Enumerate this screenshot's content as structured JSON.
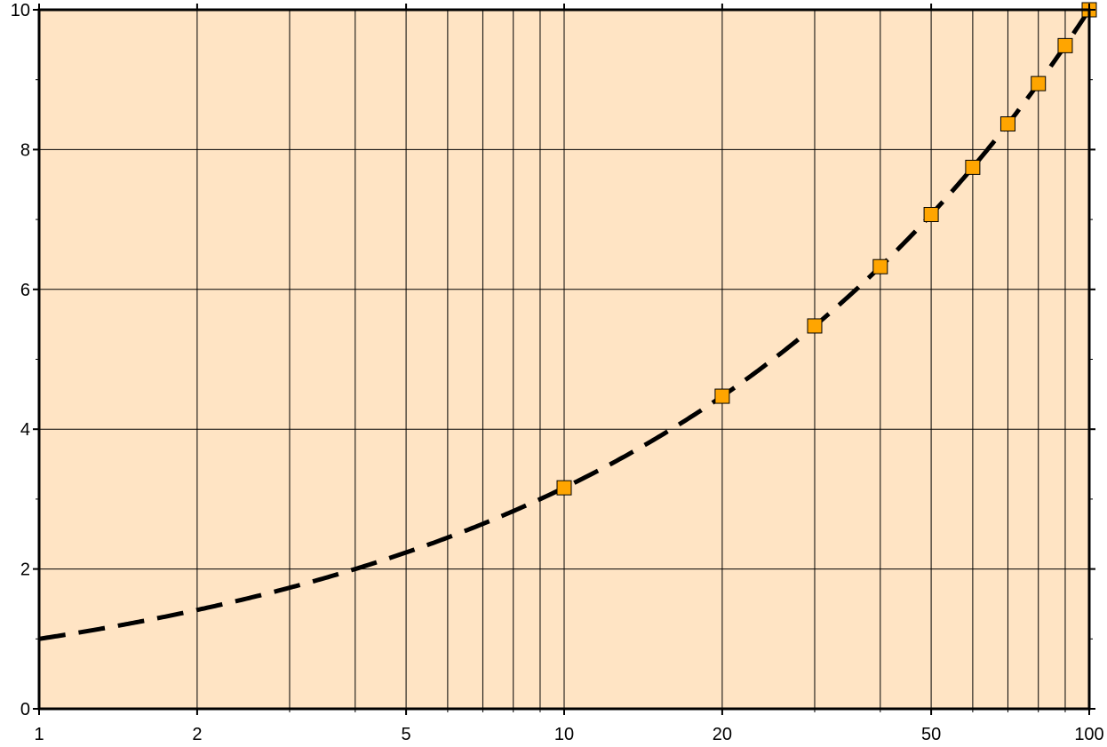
{
  "chart_data": {
    "type": "line",
    "title": "",
    "xlabel": "",
    "ylabel": "",
    "x_scale": "log",
    "xlim": [
      1,
      100
    ],
    "ylim": [
      0,
      10
    ],
    "x_ticks": [
      1,
      2,
      5,
      10,
      20,
      50,
      100
    ],
    "x_tick_labels": [
      "1",
      "2",
      "5",
      "10",
      "20",
      "50",
      "100"
    ],
    "x_gridlines": [
      2,
      3,
      4,
      5,
      6,
      7,
      8,
      9,
      10,
      20,
      30,
      40,
      50,
      60,
      70,
      80,
      90
    ],
    "y_ticks": [
      0,
      2,
      4,
      6,
      8,
      10
    ],
    "y_tick_labels": [
      "0",
      "2",
      "4",
      "6",
      "8",
      "10"
    ],
    "y_minor_ticks": [
      1,
      3,
      5,
      7,
      9
    ],
    "grid": true,
    "background_color": "#ffe4c4",
    "series": [
      {
        "style": "dashed-line",
        "color": "#000000",
        "function": "y = sqrt(x)",
        "x_range": [
          1,
          100
        ]
      },
      {
        "style": "square-markers",
        "color": "#ffa500",
        "x": [
          10,
          20,
          30,
          40,
          50,
          60,
          70,
          80,
          90,
          100
        ],
        "y": [
          3.162,
          4.472,
          5.477,
          6.325,
          7.071,
          7.746,
          8.367,
          8.944,
          9.487,
          10.0
        ]
      }
    ]
  }
}
